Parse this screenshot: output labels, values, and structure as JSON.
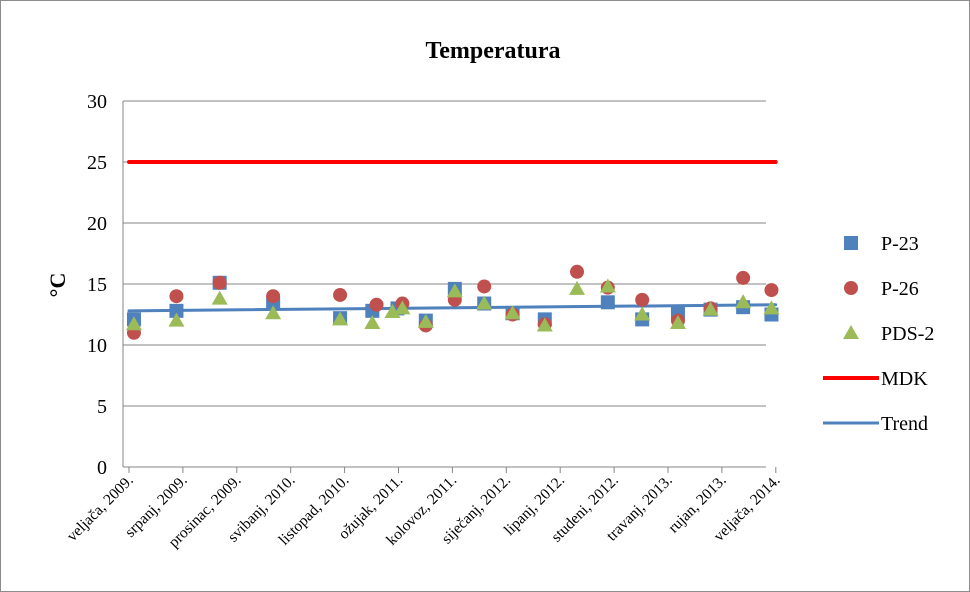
{
  "chart_data": {
    "type": "scatter",
    "title": "Temperatura",
    "ylabel": "°C",
    "xlabel": "",
    "ylim": [
      0,
      30
    ],
    "yticks": [
      0,
      5,
      10,
      15,
      20,
      25,
      30
    ],
    "grid": "horizontal",
    "legend_position": "right",
    "x_categories": [
      "veljača, 2009.",
      "srpanj, 2009.",
      "prosinac, 2009.",
      "svibanj, 2010.",
      "listopad, 2010.",
      "ožujak, 2011.",
      "kolovoz, 2011.",
      "siječanj, 2012.",
      "lipanj, 2012.",
      "studeni, 2012.",
      "travanj, 2013.",
      "rujan, 2013.",
      "veljača, 2014."
    ],
    "series": [
      {
        "name": "P-23",
        "marker": "square",
        "color": "#4f81bd",
        "points": [
          {
            "x": "2009-02-15",
            "y": 12.1
          },
          {
            "x": "2009-06-15",
            "y": 12.8
          },
          {
            "x": "2009-10-15",
            "y": 15.1
          },
          {
            "x": "2010-03-15",
            "y": 13.4
          },
          {
            "x": "2010-09-20",
            "y": 12.2
          },
          {
            "x": "2010-12-20",
            "y": 12.8
          },
          {
            "x": "2011-03-01",
            "y": 13.0
          },
          {
            "x": "2011-05-20",
            "y": 12.0
          },
          {
            "x": "2011-08-10",
            "y": 14.6
          },
          {
            "x": "2011-11-01",
            "y": 13.4
          },
          {
            "x": "2012-01-20",
            "y": 12.6
          },
          {
            "x": "2012-04-20",
            "y": 12.1
          },
          {
            "x": "2012-10-15",
            "y": 13.5
          },
          {
            "x": "2013-01-20",
            "y": 12.1
          },
          {
            "x": "2013-05-01",
            "y": 12.6
          },
          {
            "x": "2013-08-01",
            "y": 12.9
          },
          {
            "x": "2013-11-01",
            "y": 13.1
          },
          {
            "x": "2014-01-20",
            "y": 12.5
          }
        ]
      },
      {
        "name": "P-26",
        "marker": "circle",
        "color": "#c0504d",
        "points": [
          {
            "x": "2009-02-15",
            "y": 11.0
          },
          {
            "x": "2009-06-15",
            "y": 14.0
          },
          {
            "x": "2009-10-15",
            "y": 15.1
          },
          {
            "x": "2010-03-15",
            "y": 14.0
          },
          {
            "x": "2010-09-20",
            "y": 14.1
          },
          {
            "x": "2011-01-01",
            "y": 13.3
          },
          {
            "x": "2011-03-15",
            "y": 13.4
          },
          {
            "x": "2011-05-20",
            "y": 11.6
          },
          {
            "x": "2011-08-10",
            "y": 13.7
          },
          {
            "x": "2011-11-01",
            "y": 14.8
          },
          {
            "x": "2012-01-20",
            "y": 12.5
          },
          {
            "x": "2012-04-20",
            "y": 11.7
          },
          {
            "x": "2012-07-20",
            "y": 16.0
          },
          {
            "x": "2012-10-15",
            "y": 14.7
          },
          {
            "x": "2013-01-20",
            "y": 13.7
          },
          {
            "x": "2013-05-01",
            "y": 12.0
          },
          {
            "x": "2013-08-01",
            "y": 13.0
          },
          {
            "x": "2013-11-01",
            "y": 15.5
          },
          {
            "x": "2014-01-20",
            "y": 14.5
          }
        ]
      },
      {
        "name": "PDS-2",
        "marker": "triangle",
        "color": "#9bbb59",
        "points": [
          {
            "x": "2009-02-15",
            "y": 11.7
          },
          {
            "x": "2009-06-15",
            "y": 12.0
          },
          {
            "x": "2009-10-15",
            "y": 13.8
          },
          {
            "x": "2010-03-15",
            "y": 12.6
          },
          {
            "x": "2010-09-20",
            "y": 12.1
          },
          {
            "x": "2010-12-20",
            "y": 11.8
          },
          {
            "x": "2011-02-15",
            "y": 12.7
          },
          {
            "x": "2011-03-15",
            "y": 13.0
          },
          {
            "x": "2011-05-20",
            "y": 11.9
          },
          {
            "x": "2011-08-10",
            "y": 14.4
          },
          {
            "x": "2011-11-01",
            "y": 13.4
          },
          {
            "x": "2012-01-20",
            "y": 12.6
          },
          {
            "x": "2012-04-20",
            "y": 11.6
          },
          {
            "x": "2012-07-20",
            "y": 14.6
          },
          {
            "x": "2012-10-15",
            "y": 14.8
          },
          {
            "x": "2013-01-20",
            "y": 12.5
          },
          {
            "x": "2013-05-01",
            "y": 11.8
          },
          {
            "x": "2013-08-01",
            "y": 12.9
          },
          {
            "x": "2013-11-01",
            "y": 13.5
          },
          {
            "x": "2014-01-20",
            "y": 13.0
          }
        ]
      },
      {
        "name": "MDK",
        "marker": "line",
        "color": "#ff0000",
        "points": [
          {
            "x": "2009-02-01",
            "y": 25
          },
          {
            "x": "2014-02-01",
            "y": 25
          }
        ]
      },
      {
        "name": "Trend",
        "marker": "line",
        "color": "#4f81bd",
        "points": [
          {
            "x": "2009-02-01",
            "y": 12.8
          },
          {
            "x": "2014-02-01",
            "y": 13.3
          }
        ]
      }
    ]
  }
}
